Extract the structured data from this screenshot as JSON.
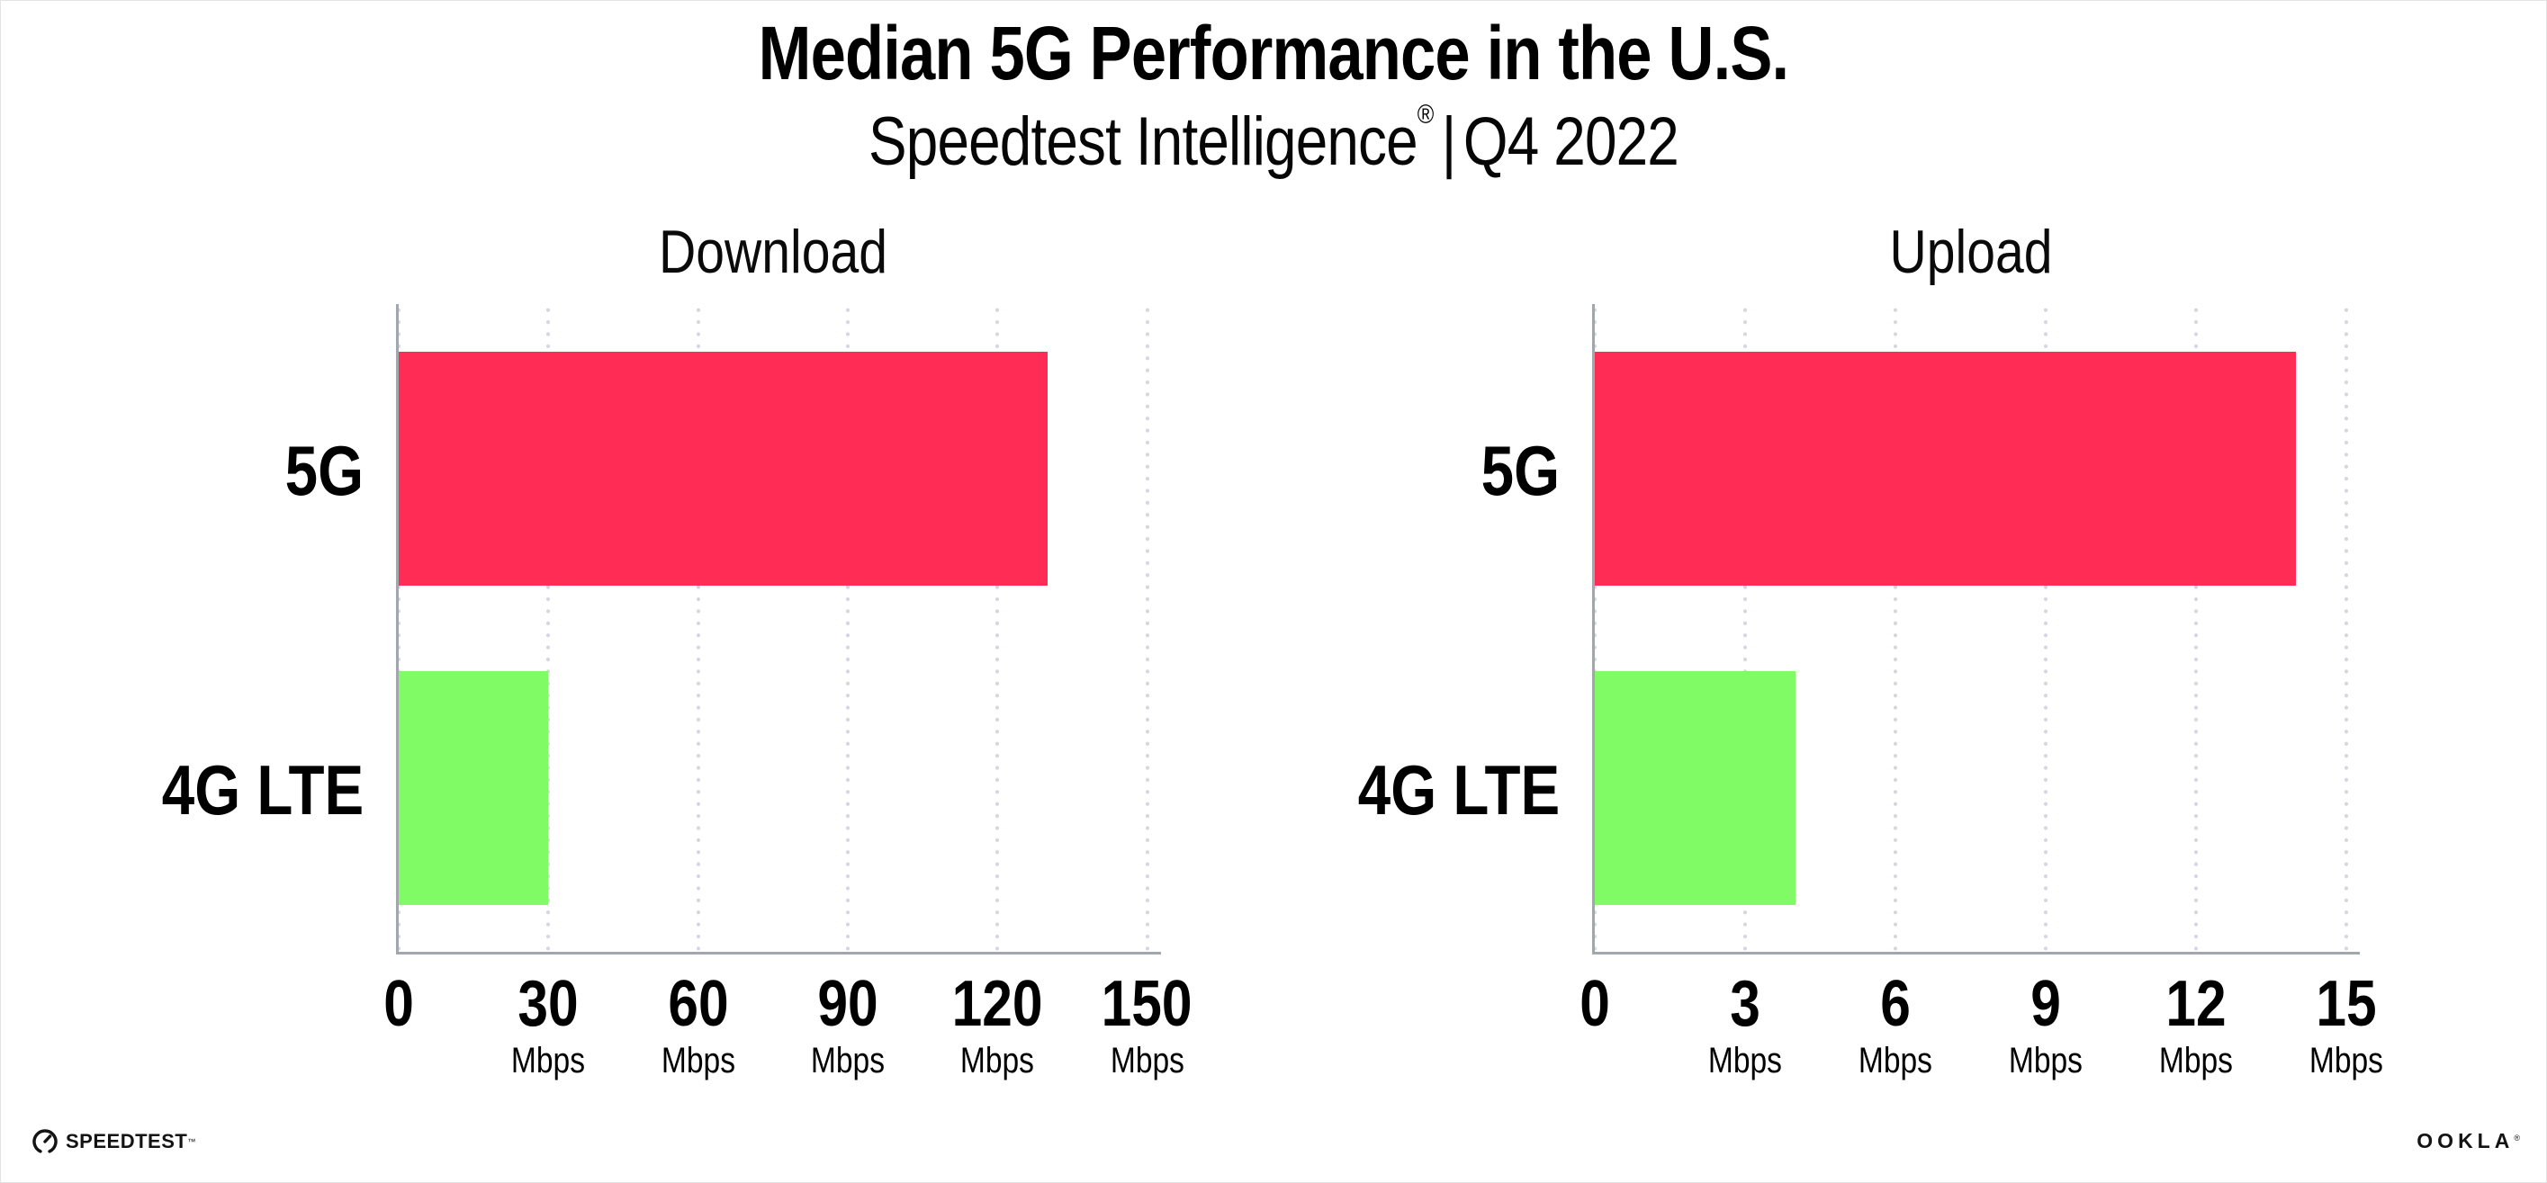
{
  "header": {
    "title": "Median 5G Performance in the U.S.",
    "subtitle": {
      "brand": "Speedtest Intelligence",
      "reg": "®",
      "pipe": "|",
      "period": "Q4 2022"
    }
  },
  "chart_data": [
    {
      "type": "bar",
      "orientation": "horizontal",
      "title": "Download",
      "categories": [
        "5G",
        "4G LTE"
      ],
      "values": [
        130,
        30
      ],
      "unit": "Mbps",
      "xlabel": "",
      "ylabel": "",
      "xlim": [
        0,
        150
      ],
      "xticks": [
        0,
        30,
        60,
        90,
        120,
        150
      ],
      "bar_colors": [
        "#FF2D55",
        "#80FB66"
      ],
      "grid": "vertical-dotted",
      "legend": "none"
    },
    {
      "type": "bar",
      "orientation": "horizontal",
      "title": "Upload",
      "categories": [
        "5G",
        "4G LTE"
      ],
      "values": [
        14,
        4
      ],
      "unit": "Mbps",
      "xlabel": "",
      "ylabel": "",
      "xlim": [
        0,
        15
      ],
      "xticks": [
        0,
        3,
        6,
        9,
        12,
        15
      ],
      "bar_colors": [
        "#FF2D55",
        "#80FB66"
      ],
      "grid": "vertical-dotted",
      "legend": "none"
    }
  ],
  "footer": {
    "speedtest": {
      "label": "SPEEDTEST",
      "tm": "™"
    },
    "ookla": {
      "label": "OOKLA",
      "reg": "®"
    }
  },
  "icons": {
    "speedtest_gauge": "speedtest-gauge-icon"
  },
  "colors": {
    "bar_5g": "#FF2D55",
    "bar_4g_lte": "#80FB66",
    "axis": "#A2A7AE",
    "grid_dot": "#D4D7E0",
    "text": "#000000"
  }
}
